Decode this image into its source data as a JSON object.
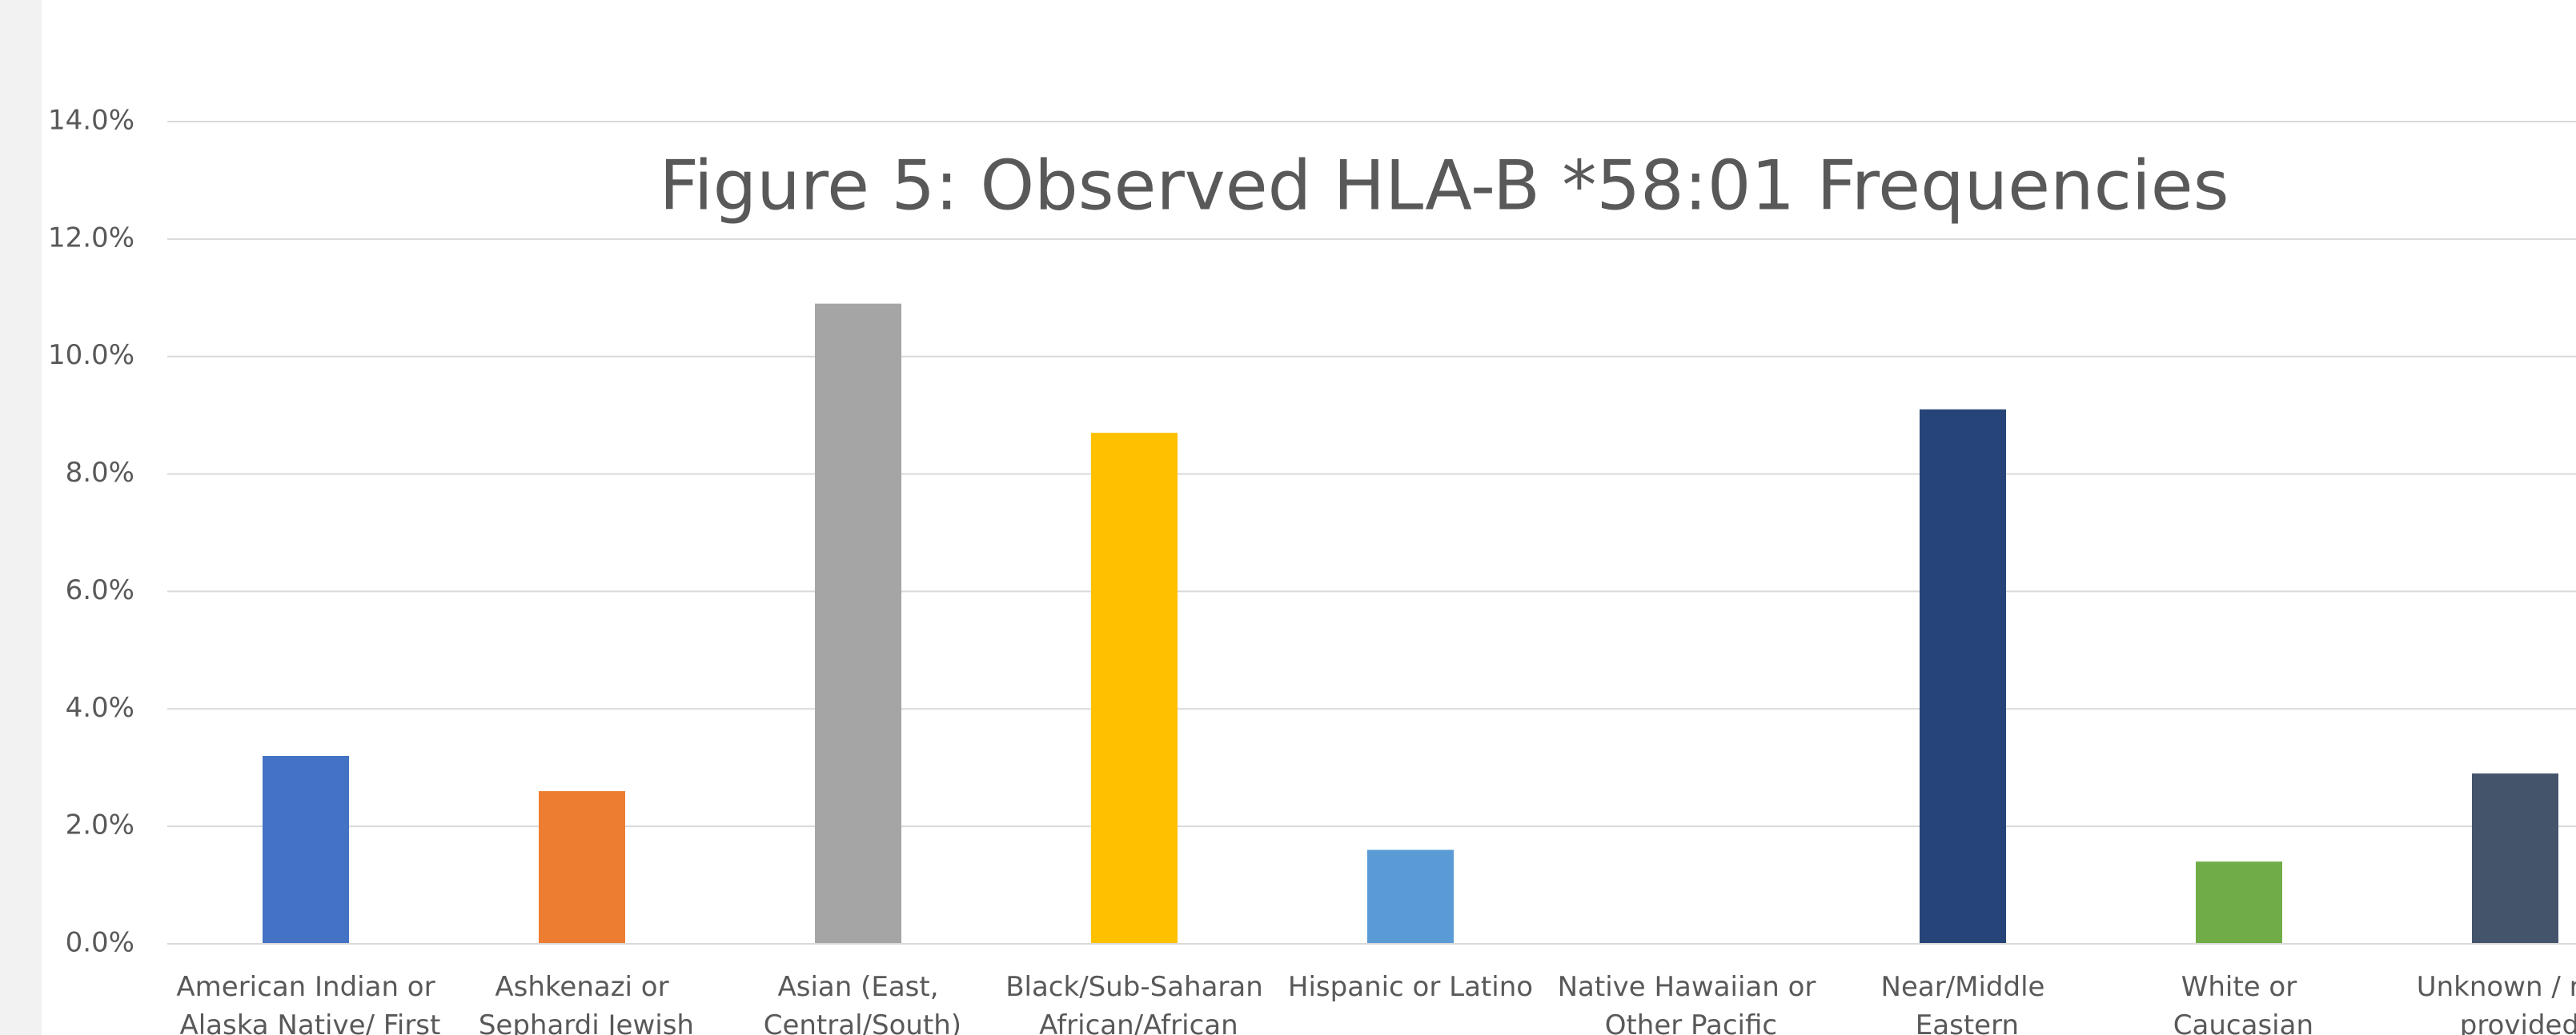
{
  "chart_data": {
    "type": "bar",
    "title": "Figure 5: Observed HLA-B *58:01 Frequencies",
    "categories": [
      "American Indian or Alaska Native/ First",
      "Ashkenazi or Sephardi Jewish",
      "Asian (East, Central/South)",
      "Black/Sub-Saharan African/African",
      "Hispanic or Latino",
      "Native Hawaiian or Other Pacific",
      "Near/Middle Eastern",
      "White or Caucasian",
      "Unknown / not provided"
    ],
    "values": [
      3.2,
      2.6,
      10.9,
      8.7,
      1.6,
      null,
      9.1,
      1.4,
      2.9
    ],
    "colors": [
      "#4472c4",
      "#ed7d31",
      "#a5a5a5",
      "#ffc000",
      "#5b9bd5",
      null,
      "#264478",
      "#70ad47",
      "#44546a"
    ],
    "ylim": [
      0,
      14
    ],
    "yticks": [
      {
        "value": 0,
        "label": "0.0%"
      },
      {
        "value": 2,
        "label": "2.0%"
      },
      {
        "value": 4,
        "label": "4.0%"
      },
      {
        "value": 6,
        "label": "6.0%"
      },
      {
        "value": 8,
        "label": "8.0%"
      },
      {
        "value": 10,
        "label": "10.0%"
      },
      {
        "value": 12,
        "label": "12.0%"
      },
      {
        "value": 14,
        "label": "14.0%"
      }
    ],
    "grid": true
  }
}
